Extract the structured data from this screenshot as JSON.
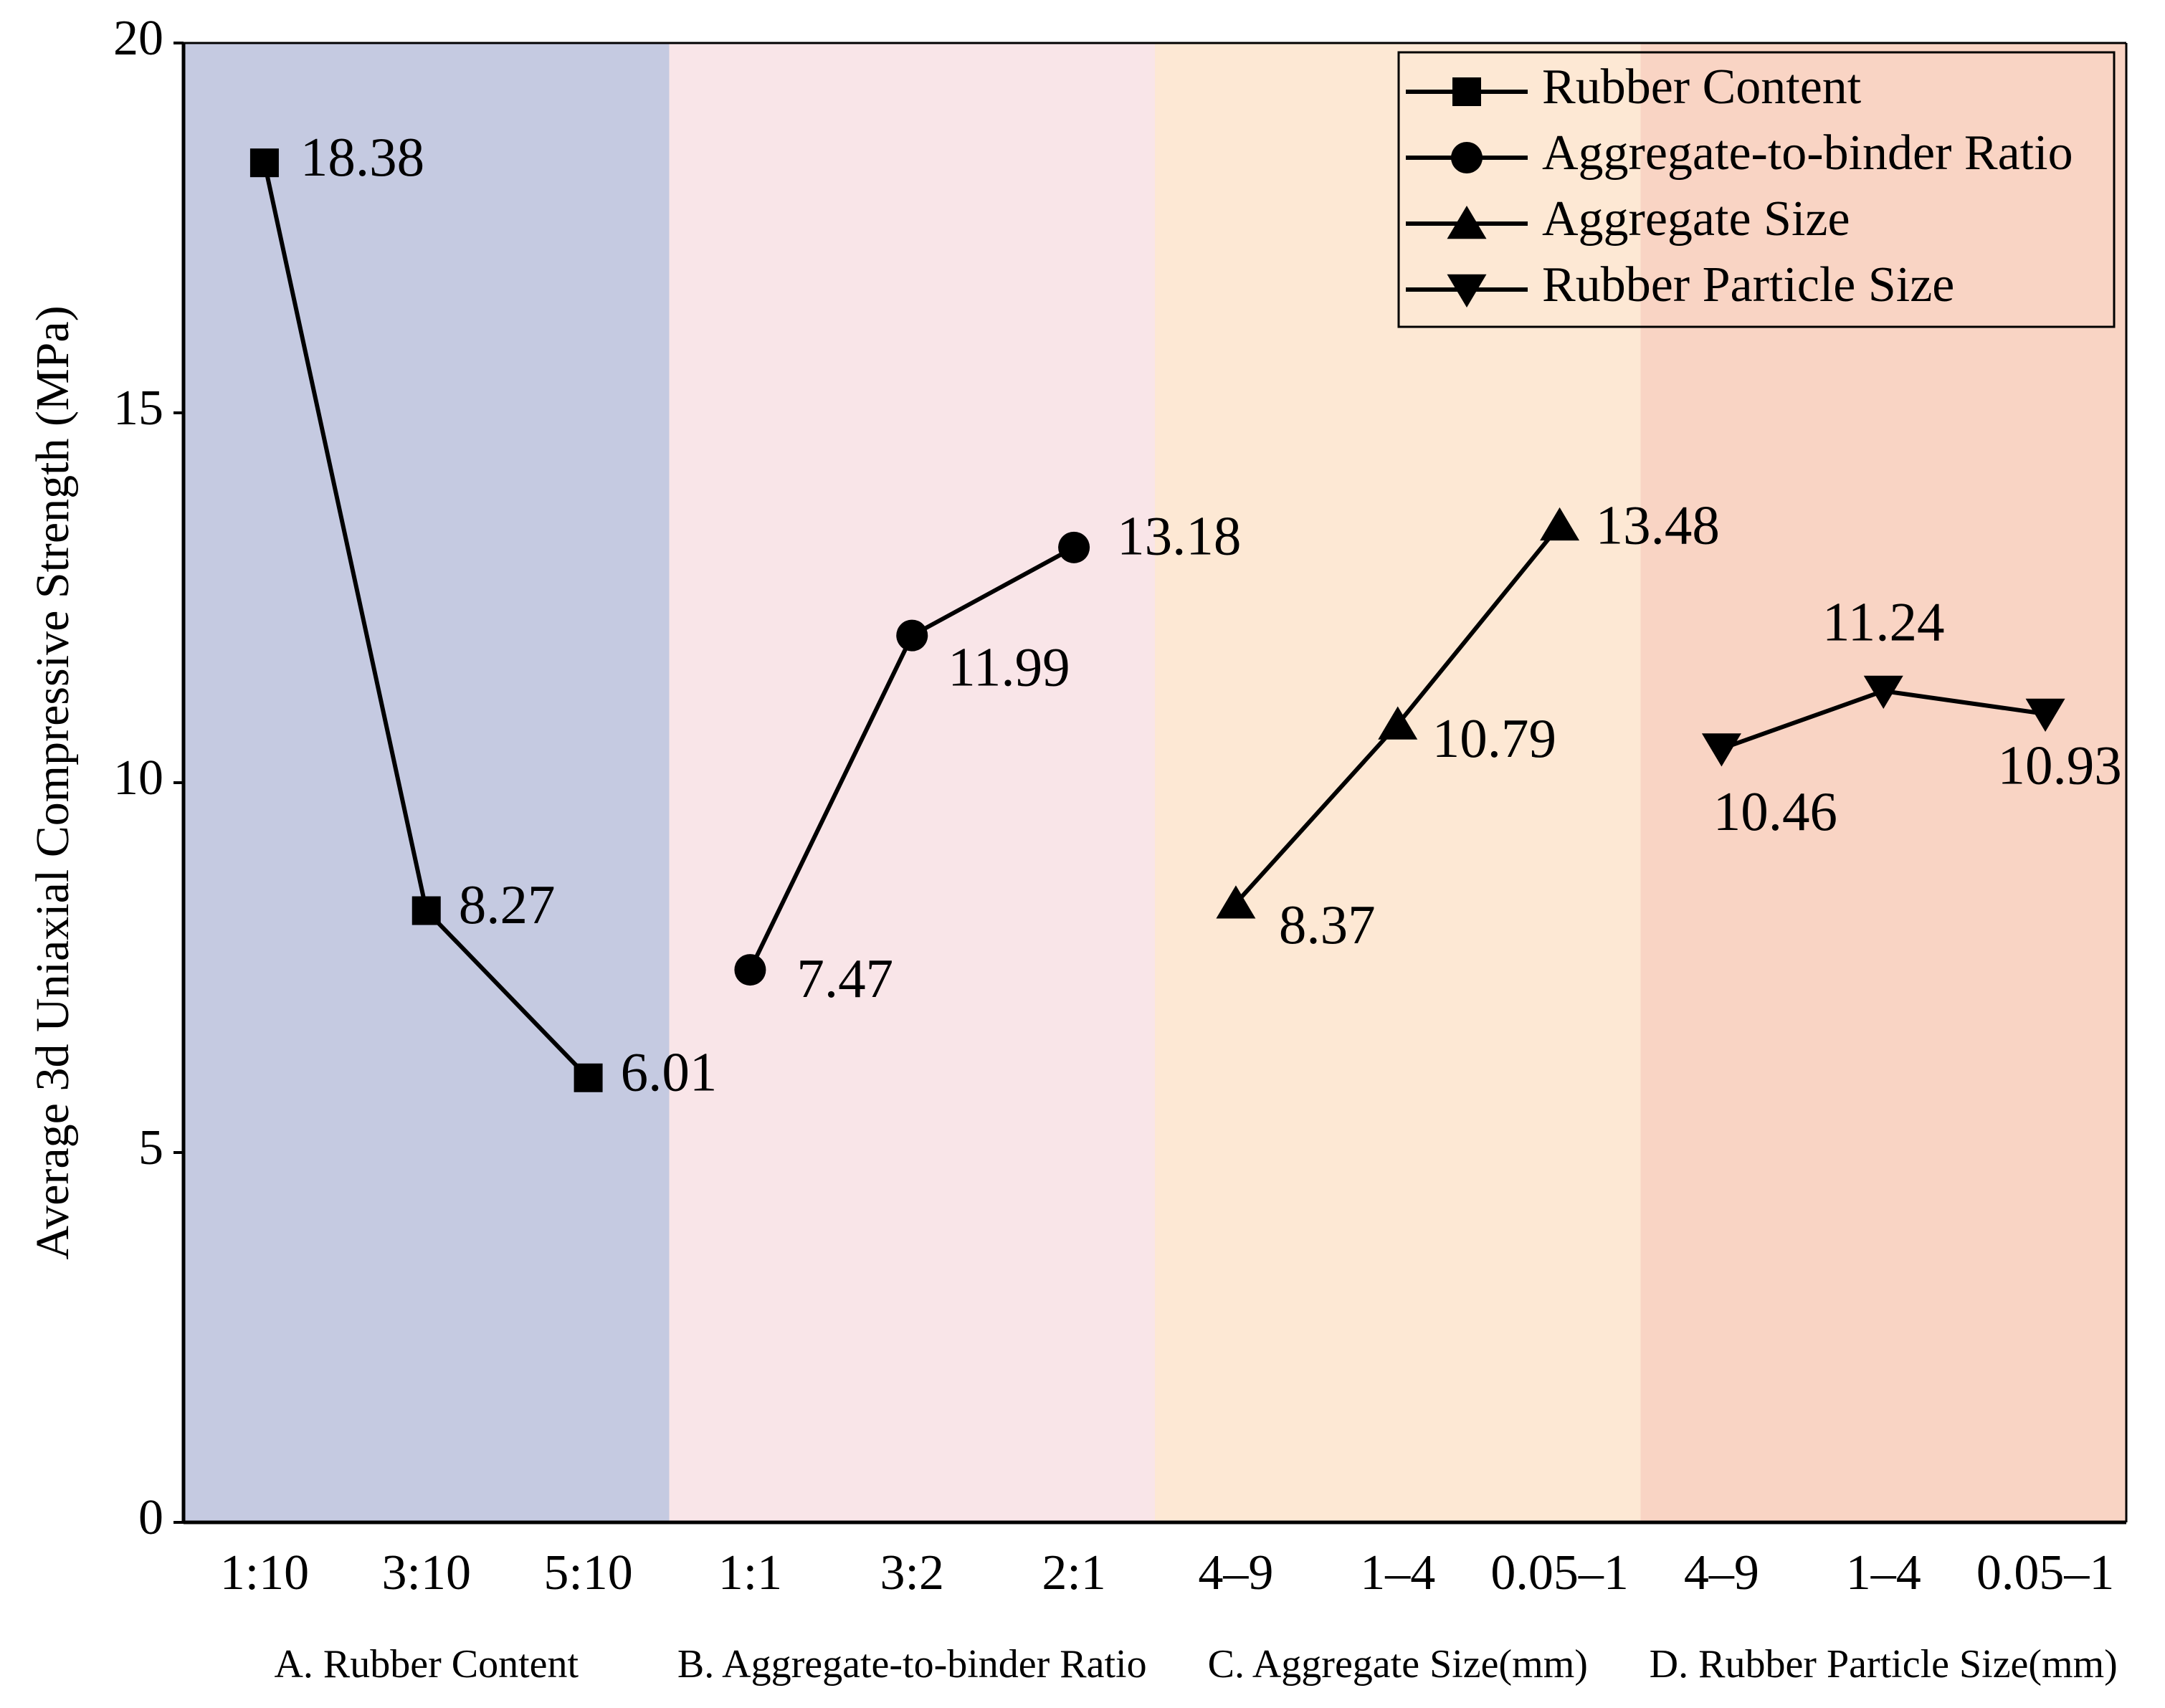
{
  "chart_data": {
    "type": "line",
    "ylabel": "Average 3d Uniaxial Compressive Strength (MPa)",
    "categories": [
      "1:10",
      "3:10",
      "5:10",
      "1:1",
      "3:2",
      "2:1",
      "4–9",
      "1–4",
      "0.05–1",
      "4–9",
      "1–4",
      "0.05–1"
    ],
    "groups": [
      {
        "name": "A. Rubber Content",
        "color": "#c5cae1"
      },
      {
        "name": "B. Aggregate-to-binder Ratio",
        "color": "#f9e5e8"
      },
      {
        "name": "C. Aggregate Size(mm)",
        "color": "#fde8d4"
      },
      {
        "name": "D. Rubber Particle Size(mm)",
        "color": "#f9d4c4"
      }
    ],
    "series": [
      {
        "name": "Rubber Content",
        "color": "#000000",
        "marker": "square",
        "values": [
          18.38,
          8.27,
          6.01,
          null,
          null,
          null,
          null,
          null,
          null,
          null,
          null,
          null
        ]
      },
      {
        "name": "Aggregate-to-binder Ratio",
        "color": "#000000",
        "marker": "circle",
        "values": [
          null,
          null,
          null,
          7.47,
          11.99,
          13.18,
          null,
          null,
          null,
          null,
          null,
          null
        ]
      },
      {
        "name": "Aggregate Size",
        "color": "#000000",
        "marker": "triangle-up",
        "values": [
          null,
          null,
          null,
          null,
          null,
          null,
          8.37,
          10.79,
          13.48,
          null,
          null,
          null
        ]
      },
      {
        "name": "Rubber Particle Size",
        "color": "#000000",
        "marker": "triangle-down",
        "values": [
          null,
          null,
          null,
          null,
          null,
          null,
          null,
          null,
          null,
          10.46,
          11.24,
          10.93
        ]
      }
    ],
    "ylim": [
      0,
      20
    ],
    "yticks": [
      0,
      5,
      10,
      15,
      20
    ],
    "legend": "upper right"
  }
}
